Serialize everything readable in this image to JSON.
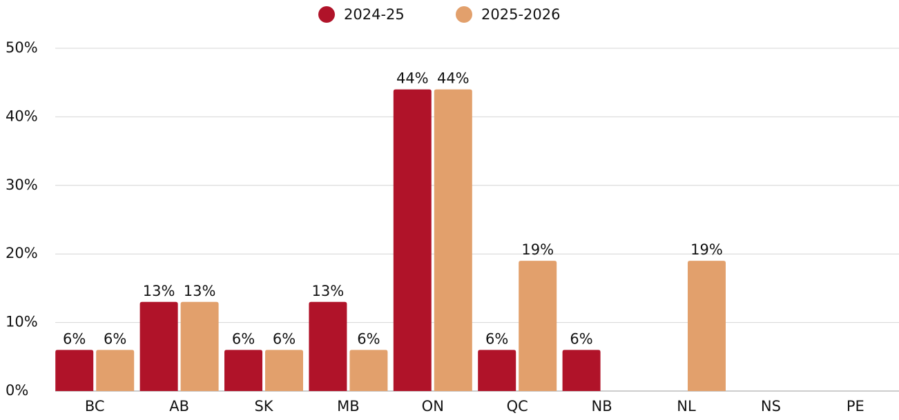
{
  "chart_data": {
    "type": "bar",
    "categories": [
      "BC",
      "AB",
      "SK",
      "MB",
      "ON",
      "QC",
      "NB",
      "NL",
      "NS",
      "PE"
    ],
    "series": [
      {
        "name": "2024-25",
        "color": "#b01329",
        "values": [
          6,
          13,
          6,
          13,
          44,
          6,
          6,
          null,
          null,
          null
        ],
        "value_labels": [
          "6%",
          "13%",
          "6%",
          "13%",
          "44%",
          "6%",
          "6%",
          null,
          null,
          null
        ]
      },
      {
        "name": "2025-2026",
        "color": "#e2a06c",
        "values": [
          6,
          13,
          6,
          6,
          44,
          19,
          null,
          19,
          null,
          null
        ],
        "value_labels": [
          "6%",
          "13%",
          "6%",
          "6%",
          "44%",
          "19%",
          null,
          "19%",
          null,
          null
        ]
      }
    ],
    "ylim": [
      0,
      50
    ],
    "yticks": [
      {
        "value": 0,
        "label": "0%"
      },
      {
        "value": 10,
        "label": "10%"
      },
      {
        "value": 20,
        "label": "20%"
      },
      {
        "value": 30,
        "label": "30%"
      },
      {
        "value": 40,
        "label": "40%"
      },
      {
        "value": 50,
        "label": "50%"
      }
    ],
    "grid": true,
    "legend": "top"
  }
}
